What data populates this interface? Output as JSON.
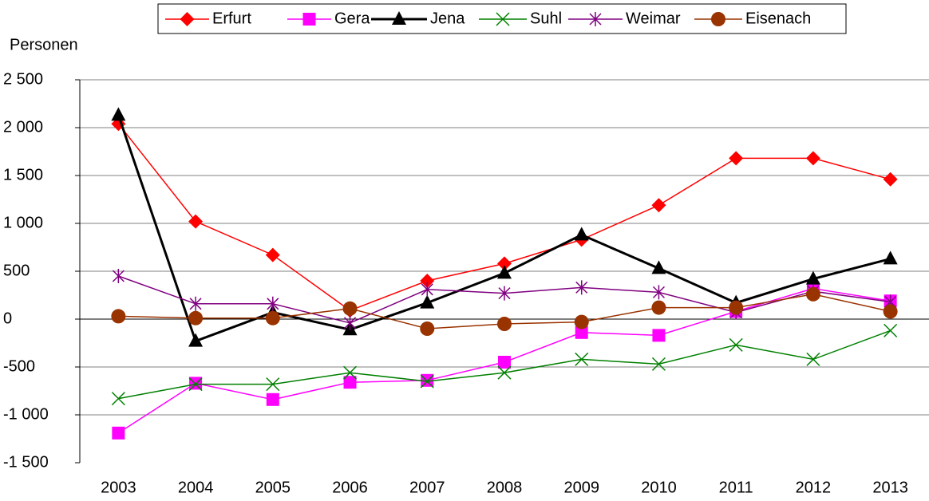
{
  "chart_data": {
    "type": "line",
    "y_label": "Personen",
    "categories": [
      "2003",
      "2004",
      "2005",
      "2006",
      "2007",
      "2008",
      "2009",
      "2010",
      "2011",
      "2012",
      "2013"
    ],
    "series": [
      {
        "name": "Erfurt",
        "color": "#ff0000",
        "marker": "diamond",
        "line_width": 1.5,
        "values": [
          2040,
          1020,
          670,
          90,
          400,
          580,
          830,
          1190,
          1680,
          1680,
          1460
        ]
      },
      {
        "name": "Gera",
        "color": "#ff00ff",
        "marker": "square",
        "line_width": 1.5,
        "values": [
          -1190,
          -670,
          -840,
          -660,
          -640,
          -450,
          -140,
          -170,
          80,
          320,
          190
        ]
      },
      {
        "name": "Jena",
        "color": "#000000",
        "marker": "triangle",
        "line_width": 3,
        "values": [
          2130,
          -230,
          70,
          -110,
          170,
          480,
          880,
          530,
          170,
          420,
          630
        ]
      },
      {
        "name": "Suhl",
        "color": "#008000",
        "marker": "x",
        "line_width": 1.5,
        "values": [
          -830,
          -680,
          -680,
          -560,
          -650,
          -560,
          -420,
          -470,
          -270,
          -420,
          -120
        ]
      },
      {
        "name": "Weimar",
        "color": "#800080",
        "marker": "star",
        "line_width": 1.5,
        "values": [
          450,
          160,
          160,
          -40,
          310,
          270,
          330,
          280,
          70,
          290,
          180
        ]
      },
      {
        "name": "Eisenach",
        "color": "#993300",
        "marker": "circle",
        "line_width": 1.5,
        "values": [
          30,
          10,
          10,
          110,
          -100,
          -50,
          -30,
          120,
          120,
          260,
          80
        ]
      }
    ],
    "ylim": [
      -1500,
      2500
    ],
    "yticks": [
      {
        "value": -1500,
        "label": "-1 500"
      },
      {
        "value": -1000,
        "label": "-1 000"
      },
      -500,
      0,
      500,
      {
        "value": 1000,
        "label": "1 000"
      },
      {
        "value": 1500,
        "label": "1 500"
      },
      {
        "value": 2000,
        "label": "2 000"
      },
      {
        "value": 2500,
        "label": "2 500"
      }
    ],
    "grid": true,
    "legend": "top"
  }
}
